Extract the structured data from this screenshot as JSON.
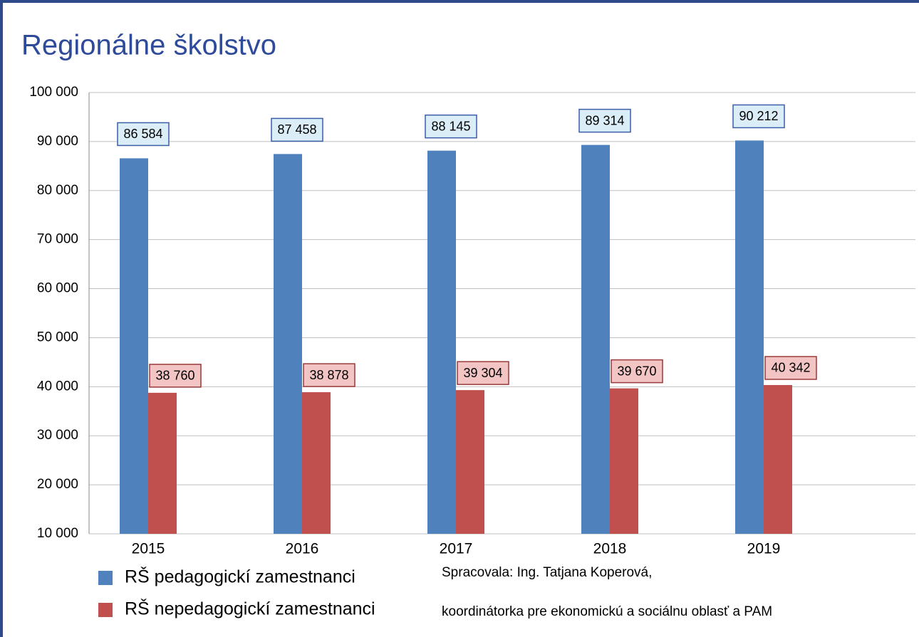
{
  "chart_data": {
    "type": "bar",
    "title": "Regionálne školstvo",
    "categories": [
      "2015",
      "2016",
      "2017",
      "2018",
      "2019"
    ],
    "series": [
      {
        "name": "RŠ pedagogickí zamestnanci",
        "color": "#4f81bd",
        "values": [
          86584,
          87458,
          88145,
          89314,
          90212
        ],
        "value_labels": [
          "86 584",
          "87 458",
          "88 145",
          "89 314",
          "90 212"
        ]
      },
      {
        "name": "RŠ nepedagogickí zamestnanci",
        "color": "#c0504d",
        "values": [
          38760,
          38878,
          39304,
          39670,
          40342
        ],
        "value_labels": [
          "38 760",
          "38 878",
          "39 304",
          "39 670",
          "40 342"
        ]
      }
    ],
    "ylim": [
      10000,
      100000
    ],
    "yticks": [
      {
        "value": 10000,
        "label": "10 000"
      },
      {
        "value": 20000,
        "label": "20 000"
      },
      {
        "value": 30000,
        "label": "30 000"
      },
      {
        "value": 40000,
        "label": "40 000"
      },
      {
        "value": 50000,
        "label": "50 000"
      },
      {
        "value": 60000,
        "label": "60 000"
      },
      {
        "value": 70000,
        "label": "70 000"
      },
      {
        "value": 80000,
        "label": "80 000"
      },
      {
        "value": 90000,
        "label": "90 000"
      },
      {
        "value": 100000,
        "label": "100 000"
      }
    ],
    "grid": true,
    "legend": "bottom-left",
    "annotations": [
      "Spracovala: Ing. Tatjana Koperová,",
      "koordinátorka pre ekonomickú a sociálnu oblasť a PAM"
    ]
  }
}
